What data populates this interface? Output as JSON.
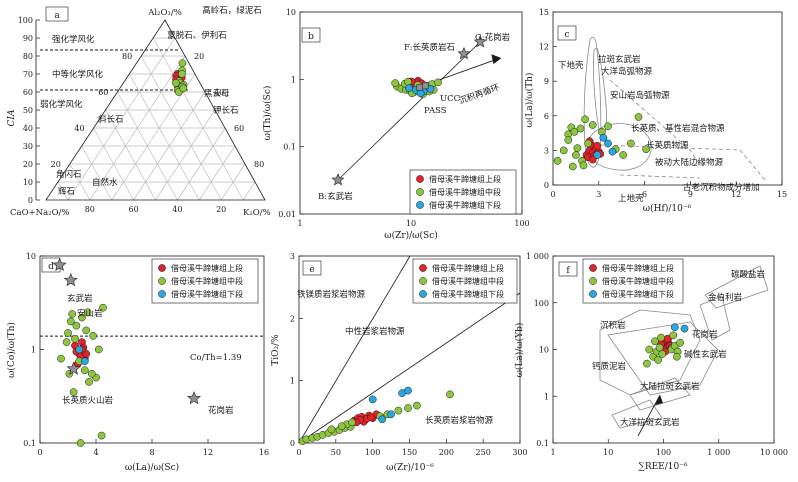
{
  "legend": [
    "借母溪牛蹄塘组上段",
    "借母溪牛蹄塘组中段",
    "借母溪牛蹄塘组下段"
  ],
  "colors": {
    "upper": "#e2232a",
    "middle": "#8cc63f",
    "lower": "#29a8e0",
    "star": "#909090"
  },
  "panels": {
    "a": {
      "label": "a",
      "apex_top": "Al₂O₃/%",
      "apex_left": "CaO+Na₂O/%",
      "apex_right": "K₂O/%",
      "ylabel": "CIA",
      "yticks": [
        "100",
        "90",
        "80",
        "70",
        "60",
        "50",
        "40",
        "30",
        "20",
        "10",
        "0"
      ],
      "left_ticks": [
        "80",
        "60",
        "40",
        "20"
      ],
      "right_ticks": [
        "20",
        "40",
        "60",
        "80"
      ],
      "base_ticks": [
        "80",
        "60",
        "40",
        "20"
      ],
      "weathering": [
        "强化学风化",
        "中等化学风化",
        "弱化学风化"
      ],
      "minerals": {
        "top": "高岭石，绿泥石",
        "smectite": "蒙脱石、伊利石",
        "biotite": "黑云母",
        "kfeld": "钾长石",
        "plag": "斜长石",
        "hbl": "角闪石",
        "px": "辉石",
        "water": "自然水"
      },
      "chart_data": {
        "type": "scatter",
        "note_axes": "ternary; values = [A (Al2O3), CN (CaO+Na2O), K (K2O)] in %",
        "series": [
          {
            "name": "借母溪牛蹄塘组上段",
            "values": [
              [
                70,
                7,
                23
              ],
              [
                69,
                8,
                23
              ],
              [
                68,
                8,
                24
              ],
              [
                67,
                9,
                24
              ],
              [
                69,
                7,
                24
              ],
              [
                68,
                9,
                23
              ],
              [
                70,
                8,
                22
              ],
              [
                67,
                8,
                25
              ],
              [
                69,
                9,
                22
              ],
              [
                68,
                7,
                25
              ],
              [
                66,
                10,
                24
              ],
              [
                67,
                10,
                23
              ]
            ]
          },
          {
            "name": "借母溪牛蹄塘组中段",
            "values": [
              [
                76,
                3,
                21
              ],
              [
                72,
                5,
                23
              ],
              [
                70,
                6,
                24
              ],
              [
                66,
                9,
                25
              ],
              [
                64,
                10,
                26
              ],
              [
                63,
                11,
                26
              ],
              [
                65,
                9,
                26
              ],
              [
                62,
                11,
                27
              ],
              [
                61,
                12,
                27
              ],
              [
                64,
                8,
                28
              ],
              [
                63,
                9,
                28
              ],
              [
                60,
                12,
                28
              ],
              [
                65,
                11,
                24
              ],
              [
                62,
                9,
                29
              ]
            ]
          },
          {
            "name": "借母溪牛蹄塘组下段",
            "values": []
          }
        ]
      }
    },
    "b": {
      "label": "b",
      "xlabel": "ω(Zr)/ω(Sc)",
      "ylabel": "ω(Th)/ω(Sc)",
      "xticks": [
        "1",
        "10",
        "100"
      ],
      "yticks": [
        "0.01",
        "0.1",
        "1",
        "10"
      ],
      "refs": {
        "F": "F:长英质岩石",
        "G": "G:花岗岩",
        "B": "B:玄武岩",
        "UCC": "UCC",
        "PASS": "PASS",
        "cycle": "沉积再循环"
      },
      "chart_data": {
        "type": "scatter",
        "xscale": "log",
        "yscale": "log",
        "xlim": [
          1,
          100
        ],
        "ylim": [
          0.01,
          10
        ],
        "references": [
          {
            "name": "B:玄武岩",
            "x": 2.2,
            "y": 0.032
          },
          {
            "name": "F:长英质岩石",
            "x": 30,
            "y": 2.4
          },
          {
            "name": "G:花岗岩",
            "x": 42,
            "y": 3.6
          },
          {
            "name": "UCC",
            "x": 13.5,
            "y": 0.8
          },
          {
            "name": "PASS",
            "x": 12,
            "y": 0.76
          }
        ],
        "series": [
          {
            "name": "借母溪牛蹄塘组上段",
            "x": [
              9.5,
              10.2,
              11.0,
              11.6,
              10.5,
              9.9,
              12.0,
              11.2,
              10.8,
              9.2,
              12.5,
              10.1
            ],
            "y": [
              0.92,
              0.88,
              0.85,
              0.95,
              0.8,
              0.78,
              0.83,
              0.9,
              0.75,
              0.86,
              0.87,
              0.93
            ]
          },
          {
            "name": "借母溪牛蹄塘组中段",
            "x": [
              7.5,
              8.2,
              9.0,
              9.8,
              10.8,
              12.5,
              14.0,
              15.5,
              8.8,
              11.5,
              13.2,
              16.0,
              17.5,
              10.2,
              7.2,
              12.8,
              9.4,
              14.6
            ],
            "y": [
              0.78,
              0.72,
              0.7,
              0.68,
              0.65,
              0.72,
              0.8,
              0.85,
              0.86,
              0.82,
              0.76,
              0.7,
              0.9,
              0.62,
              0.88,
              0.6,
              0.92,
              0.66
            ]
          },
          {
            "name": "借母溪牛蹄塘组下段",
            "x": [
              11.0,
              13.0,
              15.0,
              9.6,
              12.2
            ],
            "y": [
              0.7,
              0.66,
              0.72,
              0.74,
              0.62
            ]
          }
        ]
      }
    },
    "c": {
      "label": "c",
      "xlabel": "ω(Hf)/10⁻⁶",
      "ylabel": "ω(La)/ω(Th)",
      "xticks": [
        "0",
        "3",
        "6",
        "9",
        "12",
        "15"
      ],
      "yticks": [
        "0",
        "3",
        "6",
        "9",
        "12",
        "15"
      ],
      "fields": {
        "crust": "下地壳",
        "arc_basalt": "拉斑玄武岩",
        "ocean_arc": "大洋岛弧物源",
        "andes": "安山岩岛弧物源",
        "mixed": "长英质、基性岩混合物源",
        "felsic": "长英质物源",
        "passive": "被动大陆边缘物源",
        "old": "古老沉积物成分增加",
        "upper_crust": "上地壳"
      },
      "chart_data": {
        "type": "scatter",
        "xlim": [
          0,
          15
        ],
        "ylim": [
          0,
          15
        ],
        "series": [
          {
            "name": "借母溪牛蹄塘组上段",
            "x": [
              2.2,
              2.4,
              2.6,
              2.8,
              3.0,
              2.5,
              2.3,
              2.7,
              2.9,
              3.1,
              2.6,
              2.4
            ],
            "y": [
              2.6,
              3.0,
              2.8,
              3.2,
              2.9,
              3.5,
              2.4,
              2.5,
              3.4,
              2.7,
              2.2,
              3.8
            ]
          },
          {
            "name": "借母溪牛蹄塘组中段",
            "x": [
              0.3,
              0.7,
              1.0,
              1.2,
              1.4,
              1.6,
              1.8,
              2.1,
              2.3,
              1.5,
              1.9,
              3.2,
              3.6,
              4.1,
              4.6,
              5.1,
              5.6,
              6.1,
              2.6,
              1.0,
              1.3,
              2.0
            ],
            "y": [
              2.1,
              3.0,
              4.4,
              5.0,
              4.6,
              3.2,
              4.9,
              5.7,
              3.6,
              2.6,
              2.1,
              4.6,
              5.1,
              3.1,
              2.6,
              3.6,
              5.9,
              3.1,
              5.2,
              3.9,
              1.6,
              1.7
            ]
          },
          {
            "name": "借母溪牛蹄塘组下段",
            "x": [
              2.9,
              3.3,
              3.6,
              3.9
            ],
            "y": [
              2.6,
              4.1,
              3.6,
              2.9
            ]
          }
        ]
      }
    },
    "d": {
      "label": "d",
      "xlabel": "ω(La)/ω(Sc)",
      "ylabel": "ω(Co)/ω(Th)",
      "xticks": [
        "0",
        "4",
        "8",
        "12",
        "16"
      ],
      "yticks": [
        "0.1",
        "1",
        "10"
      ],
      "refs": {
        "basalt": "玄武岩",
        "andesite": "安山岩",
        "felsic": "长英质火山岩",
        "granite": "花岗岩",
        "line": "Co/Th=1.39"
      },
      "chart_data": {
        "type": "scatter",
        "xlim": [
          0,
          16
        ],
        "ylim": [
          0.1,
          10
        ],
        "yscale": "log",
        "references": [
          {
            "name": "玄武岩",
            "x": 1.4,
            "y": 8.0
          },
          {
            "name": "安山岩",
            "x": 2.2,
            "y": 5.5
          },
          {
            "name": "长英质火山岩",
            "x": 2.4,
            "y": 0.62
          },
          {
            "name": "花岗岩",
            "x": 11.0,
            "y": 0.3
          }
        ],
        "reference_lines": [
          {
            "name": "Co/Th=1.39",
            "y": 1.39
          }
        ],
        "series": [
          {
            "name": "借母溪牛蹄塘组上段",
            "x": [
              2.5,
              2.8,
              3.0,
              3.2,
              2.6,
              2.9,
              3.1,
              2.7,
              3.3,
              3.0
            ],
            "y": [
              1.1,
              0.9,
              1.2,
              0.8,
              0.95,
              0.85,
              1.05,
              0.7,
              0.9,
              1.0
            ]
          },
          {
            "name": "借母溪牛蹄塘组中段",
            "x": [
              1.5,
              2.0,
              2.2,
              2.6,
              3.0,
              3.4,
              3.8,
              4.2,
              4.5,
              2.1,
              3.5,
              2.4,
              4.0,
              2.9,
              3.2,
              1.9,
              2.8,
              3.7,
              4.4,
              2.3,
              3.3,
              2.5
            ],
            "y": [
              0.8,
              1.5,
              2.0,
              1.8,
              2.2,
              2.5,
              1.4,
              1.0,
              2.8,
              0.55,
              0.45,
              0.35,
              0.5,
              0.1,
              0.6,
              1.2,
              0.75,
              0.55,
              0.12,
              2.4,
              1.6,
              1.3
            ]
          },
          {
            "name": "借母溪牛蹄塘组下段",
            "x": [
              2.8,
              3.2
            ],
            "y": [
              1.0,
              0.75
            ]
          }
        ]
      }
    },
    "e": {
      "label": "e",
      "xlabel": "ω(Zr)/10⁻⁶",
      "ylabel": "TiO₂/%",
      "xticks": [
        "0",
        "50",
        "100",
        "150",
        "200",
        "250",
        "300"
      ],
      "yticks": [
        "0",
        "1",
        "2",
        "3"
      ],
      "fields": {
        "mafic": "铁镁质岩浆岩物源",
        "intermediate": "中性岩浆岩物源",
        "felsic": "长英质岩浆岩物源"
      },
      "chart_data": {
        "type": "scatter",
        "xlim": [
          0,
          300
        ],
        "ylim": [
          0,
          3
        ],
        "series": [
          {
            "name": "借母溪牛蹄塘组上段",
            "x": [
              75,
              80,
              85,
              90,
              95,
              100,
              105,
              88,
              92,
              98,
              83,
              78
            ],
            "y": [
              0.36,
              0.4,
              0.42,
              0.38,
              0.44,
              0.4,
              0.46,
              0.34,
              0.39,
              0.41,
              0.37,
              0.33
            ]
          },
          {
            "name": "借母溪牛蹄塘组中段",
            "x": [
              5,
              10,
              18,
              25,
              32,
              40,
              48,
              55,
              62,
              70,
              110,
              120,
              135,
              148,
              160,
              205,
              65,
              72,
              58,
              44
            ],
            "y": [
              0.03,
              0.06,
              0.08,
              0.1,
              0.13,
              0.16,
              0.18,
              0.21,
              0.24,
              0.26,
              0.43,
              0.46,
              0.52,
              0.56,
              0.6,
              0.78,
              0.3,
              0.33,
              0.27,
              0.22
            ]
          },
          {
            "name": "借母溪牛蹄塘组下段",
            "x": [
              100,
              140,
              148,
              125,
              113
            ],
            "y": [
              0.7,
              0.8,
              0.84,
              0.46,
              0.38
            ]
          }
        ]
      }
    },
    "f": {
      "label": "f",
      "xlabel": "∑REE/10⁻⁶",
      "ylabel": "ω(La)/ω(Yb)",
      "xticks": [
        "1",
        "10",
        "100",
        "1 000",
        "10 000"
      ],
      "yticks": [
        "0.1",
        "1",
        "10",
        "100",
        "1 000"
      ],
      "fields": {
        "carb": "碳酸盐岩",
        "sed": "沉积岩",
        "granite": "花岗岩",
        "alk": "碱性玄武岩",
        "marl": "钙质泥岩",
        "cont": "大陆拉斑玄武岩",
        "ocean": "大洋拉斑玄武岩",
        "kimb": "金伯利岩"
      },
      "chart_data": {
        "type": "scatter",
        "xscale": "log",
        "yscale": "log",
        "xlim": [
          1,
          10000
        ],
        "ylim": [
          0.1,
          1000
        ],
        "series": [
          {
            "name": "借母溪牛蹄塘组上段",
            "x": [
              95,
              105,
              115,
              125,
              100,
              110,
              120,
              130,
              90,
              140,
              108,
              118
            ],
            "y": [
              12,
              14,
              11,
              13,
              15,
              10,
              16,
              12,
              13,
              11,
              9,
              17
            ]
          },
          {
            "name": "借母溪牛蹄塘组中段",
            "x": [
              50,
              65,
              75,
              85,
              95,
              140,
              160,
              180,
              200,
              70,
              80,
              90,
              55,
              150,
              175
            ],
            "y": [
              5,
              7,
              9,
              11,
              8,
              10,
              12,
              9,
              14,
              15,
              6,
              18,
              10,
              20,
              7
            ]
          },
          {
            "name": "借母溪牛蹄塘组下段",
            "x": [
              160,
              240
            ],
            "y": [
              30,
              28
            ]
          }
        ]
      }
    }
  }
}
